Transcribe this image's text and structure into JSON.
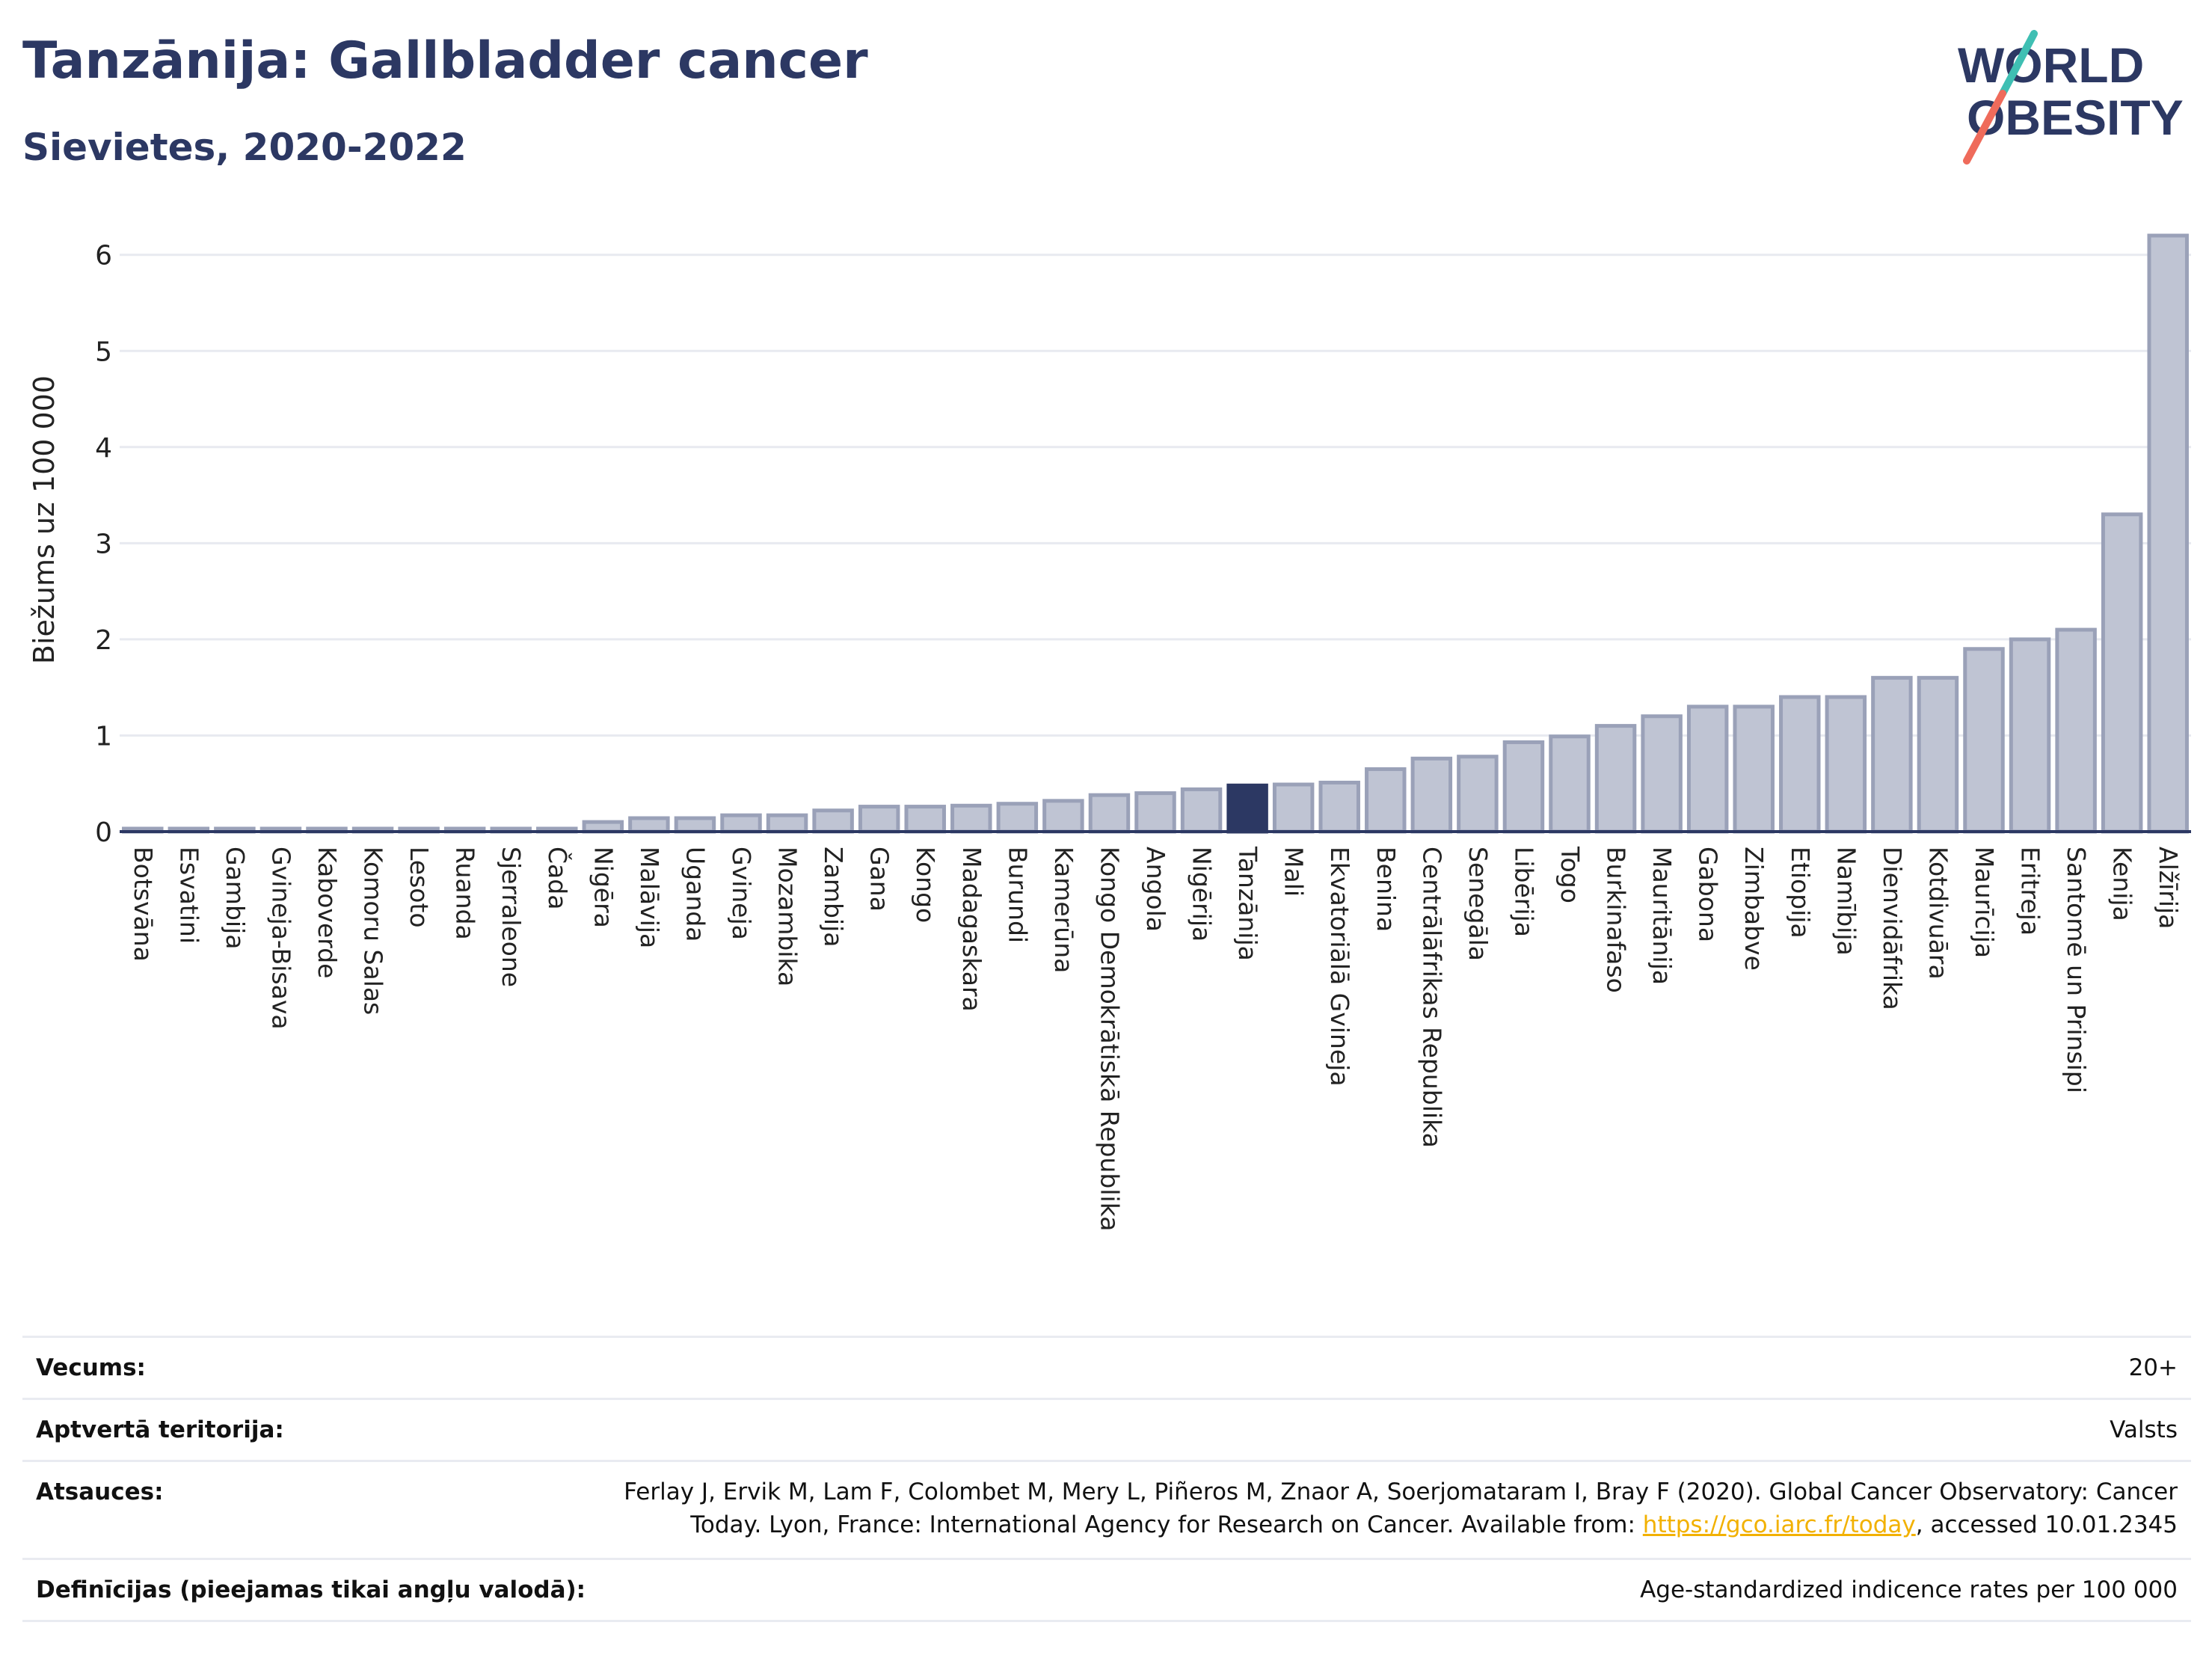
{
  "title": "Tanzānija: Gallbladder cancer",
  "subtitle": "Sievietes, 2020-2022",
  "logo": {
    "line1": "WORLD",
    "line2": "OBESITY"
  },
  "colors": {
    "bar": "#bfc4d3",
    "bar_stroke": "#9aa1b8",
    "highlight": "#2c3863",
    "title": "#2c3863"
  },
  "chart_data": {
    "type": "bar",
    "ylabel": "Biežums uz 100 000",
    "ylim": [
      0,
      6.3
    ],
    "yticks": [
      0,
      1,
      2,
      3,
      4,
      5,
      6
    ],
    "grid": true,
    "highlight": "Tanzānija",
    "categories": [
      "Botsvāna",
      "Esvatini",
      "Gambija",
      "Gvineja-Bisava",
      "Kaboverde",
      "Komoru Salas",
      "Lesoto",
      "Ruanda",
      "Sjerraleone",
      "Čada",
      "Nigēra",
      "Malāvija",
      "Uganda",
      "Gvineja",
      "Mozambika",
      "Zambija",
      "Gana",
      "Kongo",
      "Madagaskara",
      "Burundi",
      "Kamerūna",
      "Kongo Demokrātiskā Republika",
      "Angola",
      "Nigērija",
      "Tanzānija",
      "Mali",
      "Ekvatoriālā Gvineja",
      "Benina",
      "Centrālāfrikas Republika",
      "Senegāla",
      "Libērija",
      "Togo",
      "Burkinafaso",
      "Mauritānija",
      "Gabona",
      "Zimbabve",
      "Etiopija",
      "Namībija",
      "Dienvidāfrika",
      "Kotdivuāra",
      "Maurīcija",
      "Eritreja",
      "Santomē un Prinsipi",
      "Kenija",
      "Alžīrija"
    ],
    "values": [
      0.01,
      0.01,
      0.01,
      0.01,
      0.01,
      0.01,
      0.01,
      0.01,
      0.01,
      0.01,
      0.1,
      0.14,
      0.14,
      0.17,
      0.17,
      0.22,
      0.26,
      0.26,
      0.27,
      0.29,
      0.32,
      0.38,
      0.4,
      0.44,
      0.48,
      0.49,
      0.51,
      0.65,
      0.76,
      0.78,
      0.93,
      0.99,
      1.1,
      1.2,
      1.3,
      1.3,
      1.4,
      1.4,
      1.6,
      1.6,
      1.9,
      2.0,
      2.1,
      3.3,
      6.2
    ]
  },
  "footer": {
    "rows": [
      {
        "label": "Vecums:",
        "value": "20+"
      },
      {
        "label": "Aptvertā teritorija:",
        "value": "Valsts"
      },
      {
        "label": "Atsauces:",
        "value_line1": "Ferlay J, Ervik M, Lam F, Colombet M, Mery L, Piñeros M, Znaor A, Soerjomataram I, Bray F (2020). Global Cancer Observatory: Cancer",
        "value_line2_pre": "Today. Lyon, France: International Agency for Research on Cancer. Available from: ",
        "link": "https://gco.iarc.fr/today",
        "value_line2_post": ", accessed 10.01.2345"
      },
      {
        "label": "Definīcijas (pieejamas tikai angļu valodā):",
        "value": "Age-standardized indicence rates per 100 000"
      }
    ]
  }
}
